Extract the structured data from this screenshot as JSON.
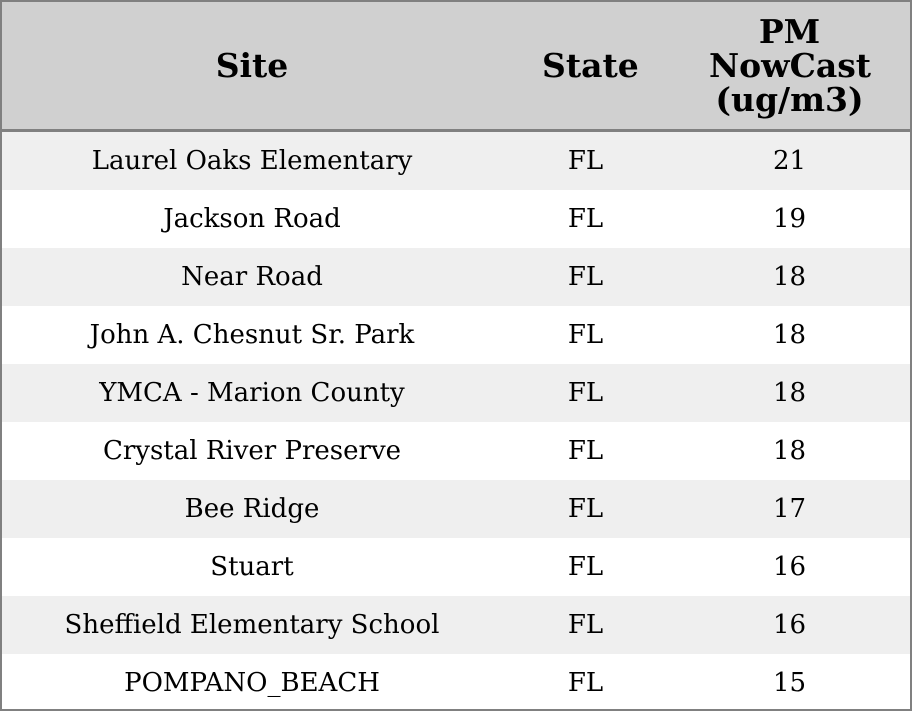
{
  "table": {
    "header": [
      "Site",
      "State",
      "PM NowCast (ug/m3)"
    ],
    "rows": [
      [
        "Laurel Oaks Elementary",
        "FL",
        21
      ],
      [
        "Jackson Road",
        "FL",
        19
      ],
      [
        "Near Road",
        "FL",
        18
      ],
      [
        "John A. Chesnut Sr. Park",
        "FL",
        18
      ],
      [
        "YMCA - Marion County",
        "FL",
        18
      ],
      [
        "Crystal River Preserve",
        "FL",
        18
      ],
      [
        "Bee Ridge",
        "FL",
        17
      ],
      [
        "Stuart",
        "FL",
        16
      ],
      [
        "Sheffield Elementary School",
        "FL",
        16
      ],
      [
        "POMPANO_BEACH",
        "FL",
        15
      ]
    ]
  }
}
